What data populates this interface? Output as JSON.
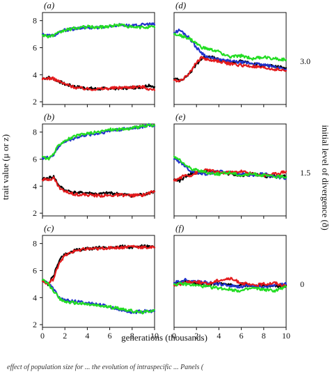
{
  "chart_data": {
    "type": "line",
    "xlabel": "generations (thousands)",
    "ylabel": "trait value (μ or z)",
    "right_axis_title": "initial level of divergence (ð)",
    "x_ticks": [
      0,
      2,
      4,
      6,
      8,
      10
    ],
    "xlim": [
      0,
      10
    ],
    "grid": false,
    "colors": {
      "black": "#000000",
      "red": "#e41a1c",
      "blue": "#2233cc",
      "green": "#22dd22"
    },
    "series_order": [
      "black",
      "blue",
      "red",
      "green"
    ],
    "caption_fragment": "effect of population size for ... the evolution of intraspecific ... Panels (",
    "panels": [
      {
        "label": "(a)",
        "divergence": "",
        "y_ticks": [
          2,
          4,
          6,
          8
        ],
        "ylim": [
          1.8,
          8.6
        ],
        "series": {
          "black": {
            "x": [
              0,
              0.5,
              1,
              1.5,
              2,
              3,
              4,
              5,
              6,
              7,
              8,
              9,
              9.5,
              10
            ],
            "y": [
              3.7,
              3.8,
              3.7,
              3.5,
              3.3,
              3.1,
              3.0,
              2.95,
              3.0,
              3.0,
              3.05,
              3.1,
              3.25,
              3.1
            ]
          },
          "red": {
            "x": [
              0,
              0.5,
              1,
              1.5,
              2,
              3,
              4,
              5,
              6,
              7,
              8,
              9,
              9.5,
              10
            ],
            "y": [
              3.65,
              3.75,
              3.7,
              3.5,
              3.3,
              3.05,
              2.95,
              2.95,
              3.0,
              3.05,
              3.1,
              3.1,
              2.95,
              2.85
            ]
          },
          "blue": {
            "x": [
              0,
              0.5,
              1,
              1.5,
              2,
              3,
              4,
              5,
              6,
              7,
              8,
              9,
              9.5,
              10
            ],
            "y": [
              7.0,
              6.9,
              6.9,
              7.1,
              7.3,
              7.4,
              7.5,
              7.5,
              7.6,
              7.7,
              7.6,
              7.7,
              7.75,
              7.7
            ]
          },
          "green": {
            "x": [
              0,
              0.5,
              1,
              1.5,
              2,
              3,
              4,
              5,
              6,
              7,
              8,
              9,
              9.5,
              10
            ],
            "y": [
              6.95,
              6.85,
              6.9,
              7.1,
              7.3,
              7.45,
              7.55,
              7.5,
              7.6,
              7.7,
              7.5,
              7.5,
              7.55,
              7.5
            ]
          }
        }
      },
      {
        "label": "(d)",
        "divergence": "3.0",
        "y_ticks": [],
        "ylim": [
          1.8,
          8.6
        ],
        "series": {
          "black": {
            "x": [
              0,
              0.5,
              1,
              1.5,
              2,
              2.5,
              3,
              4,
              5,
              6,
              7,
              8,
              9,
              10
            ],
            "y": [
              3.7,
              3.6,
              3.8,
              4.2,
              4.8,
              5.2,
              5.4,
              5.1,
              4.9,
              5.0,
              4.8,
              4.7,
              4.6,
              4.5
            ]
          },
          "red": {
            "x": [
              0,
              0.5,
              1,
              1.5,
              2,
              2.5,
              3,
              4,
              5,
              6,
              7,
              8,
              9,
              10
            ],
            "y": [
              3.6,
              3.55,
              3.8,
              4.3,
              4.9,
              5.3,
              5.1,
              5.0,
              4.8,
              4.7,
              4.6,
              4.5,
              4.4,
              4.3
            ]
          },
          "blue": {
            "x": [
              0,
              0.5,
              1,
              1.5,
              2,
              2.5,
              3,
              4,
              5,
              6,
              7,
              8,
              9,
              10
            ],
            "y": [
              7.1,
              7.3,
              7.0,
              6.6,
              6.0,
              5.6,
              5.3,
              5.1,
              5.0,
              4.9,
              4.85,
              4.7,
              4.6,
              4.4
            ]
          },
          "green": {
            "x": [
              0,
              0.5,
              1,
              1.5,
              2,
              2.5,
              3,
              4,
              5,
              6,
              7,
              8,
              9,
              10
            ],
            "y": [
              7.0,
              6.9,
              6.8,
              6.6,
              6.3,
              6.0,
              5.9,
              5.7,
              5.3,
              5.4,
              5.2,
              5.3,
              5.2,
              5.1
            ]
          }
        }
      },
      {
        "label": "(b)",
        "divergence": "",
        "y_ticks": [
          2,
          4,
          6,
          8
        ],
        "ylim": [
          1.8,
          8.6
        ],
        "series": {
          "black": {
            "x": [
              0,
              0.5,
              1,
              1.5,
              2,
              3,
              4,
              5,
              6,
              7,
              8,
              9,
              9.5,
              10
            ],
            "y": [
              4.5,
              4.6,
              4.7,
              4.0,
              3.7,
              3.5,
              3.5,
              3.4,
              3.5,
              3.4,
              3.3,
              3.4,
              3.5,
              3.6
            ]
          },
          "red": {
            "x": [
              0,
              0.5,
              1,
              1.5,
              2,
              3,
              4,
              5,
              6,
              7,
              8,
              9,
              9.5,
              10
            ],
            "y": [
              4.45,
              4.5,
              4.6,
              3.9,
              3.6,
              3.4,
              3.35,
              3.3,
              3.3,
              3.35,
              3.3,
              3.35,
              3.5,
              3.6
            ]
          },
          "blue": {
            "x": [
              0,
              0.5,
              1,
              1.5,
              2,
              3,
              4,
              5,
              6,
              7,
              8,
              9,
              9.5,
              10
            ],
            "y": [
              6.1,
              6.1,
              6.3,
              7.0,
              7.3,
              7.6,
              7.8,
              7.9,
              8.1,
              8.2,
              8.3,
              8.4,
              8.5,
              8.45
            ]
          },
          "green": {
            "x": [
              0,
              0.5,
              1,
              1.5,
              2,
              3,
              4,
              5,
              6,
              7,
              8,
              9,
              9.5,
              10
            ],
            "y": [
              6.2,
              6.0,
              6.4,
              7.1,
              7.4,
              7.7,
              7.9,
              8.0,
              8.2,
              8.2,
              8.3,
              8.45,
              8.5,
              8.5
            ]
          }
        }
      },
      {
        "label": "(e)",
        "divergence": "1.5",
        "y_ticks": [],
        "ylim": [
          1.8,
          8.6
        ],
        "series": {
          "black": {
            "x": [
              0,
              0.5,
              1,
              1.5,
              2,
              3,
              4,
              5,
              6,
              7,
              8,
              9,
              10
            ],
            "y": [
              4.5,
              4.4,
              4.7,
              4.9,
              5.0,
              5.1,
              5.0,
              4.9,
              4.8,
              4.9,
              4.7,
              4.8,
              4.7
            ]
          },
          "red": {
            "x": [
              0,
              0.5,
              1,
              1.5,
              2,
              3,
              4,
              5,
              6,
              7,
              8,
              9,
              10
            ],
            "y": [
              4.4,
              4.6,
              4.8,
              4.8,
              5.0,
              5.2,
              5.0,
              5.0,
              5.1,
              4.9,
              4.8,
              4.9,
              5.1
            ]
          },
          "blue": {
            "x": [
              0,
              0.5,
              1,
              1.5,
              2,
              3,
              4,
              5,
              6,
              7,
              8,
              9,
              10
            ],
            "y": [
              6.0,
              5.8,
              5.5,
              5.1,
              5.0,
              4.9,
              5.1,
              5.0,
              4.9,
              4.8,
              4.9,
              4.7,
              4.6
            ]
          },
          "green": {
            "x": [
              0,
              0.5,
              1,
              1.5,
              2,
              3,
              4,
              5,
              6,
              7,
              8,
              9,
              10
            ],
            "y": [
              6.2,
              5.9,
              5.6,
              5.3,
              5.2,
              5.0,
              4.9,
              5.0,
              4.8,
              4.9,
              4.8,
              4.7,
              4.7
            ]
          }
        }
      },
      {
        "label": "(c)",
        "divergence": "",
        "y_ticks": [
          2,
          4,
          6,
          8
        ],
        "ylim": [
          1.8,
          8.6
        ],
        "series": {
          "black": {
            "x": [
              0,
              0.5,
              1,
              1.5,
              2,
              3,
              4,
              5,
              6,
              7,
              8,
              9,
              10
            ],
            "y": [
              5.3,
              5.0,
              5.6,
              6.8,
              7.2,
              7.5,
              7.6,
              7.7,
              7.7,
              7.8,
              7.7,
              7.8,
              7.7
            ]
          },
          "red": {
            "x": [
              0,
              0.5,
              1,
              1.5,
              2,
              3,
              4,
              5,
              6,
              7,
              8,
              9,
              10
            ],
            "y": [
              5.2,
              5.0,
              5.4,
              6.6,
              7.1,
              7.5,
              7.6,
              7.6,
              7.7,
              7.7,
              7.8,
              7.7,
              7.7
            ]
          },
          "blue": {
            "x": [
              0,
              0.5,
              1,
              1.5,
              2,
              3,
              4,
              5,
              6,
              7,
              8,
              9,
              10
            ],
            "y": [
              5.2,
              5.1,
              4.6,
              4.0,
              3.8,
              3.7,
              3.6,
              3.5,
              3.3,
              3.1,
              2.9,
              3.0,
              3.0
            ]
          },
          "green": {
            "x": [
              0,
              0.5,
              1,
              1.5,
              2,
              3,
              4,
              5,
              6,
              7,
              8,
              9,
              10
            ],
            "y": [
              5.3,
              5.0,
              4.5,
              3.9,
              3.7,
              3.6,
              3.5,
              3.4,
              3.3,
              3.2,
              3.0,
              2.9,
              3.1
            ]
          }
        }
      },
      {
        "label": "(f)",
        "divergence": "0",
        "y_ticks": [],
        "ylim": [
          1.8,
          8.6
        ],
        "series": {
          "black": {
            "x": [
              0,
              1,
              2,
              3,
              4,
              5,
              6,
              7,
              8,
              9,
              10
            ],
            "y": [
              5.0,
              5.2,
              5.0,
              4.9,
              5.1,
              4.9,
              5.0,
              4.8,
              4.9,
              4.8,
              4.9
            ]
          },
          "red": {
            "x": [
              0,
              1,
              2,
              3,
              4,
              5,
              6,
              7,
              8,
              9,
              10
            ],
            "y": [
              4.9,
              5.1,
              5.2,
              5.0,
              5.3,
              5.4,
              5.1,
              4.9,
              5.0,
              5.1,
              4.8
            ]
          },
          "blue": {
            "x": [
              0,
              1,
              2,
              3,
              4,
              5,
              6,
              7,
              8,
              9,
              10
            ],
            "y": [
              5.1,
              5.3,
              5.2,
              5.1,
              5.0,
              4.9,
              4.8,
              4.9,
              4.8,
              4.9,
              5.0
            ]
          },
          "green": {
            "x": [
              0,
              1,
              2,
              3,
              4,
              5,
              6,
              7,
              8,
              9,
              10
            ],
            "y": [
              5.0,
              5.0,
              4.9,
              4.8,
              4.7,
              4.6,
              4.5,
              4.7,
              4.6,
              4.5,
              4.8
            ]
          }
        }
      }
    ]
  }
}
